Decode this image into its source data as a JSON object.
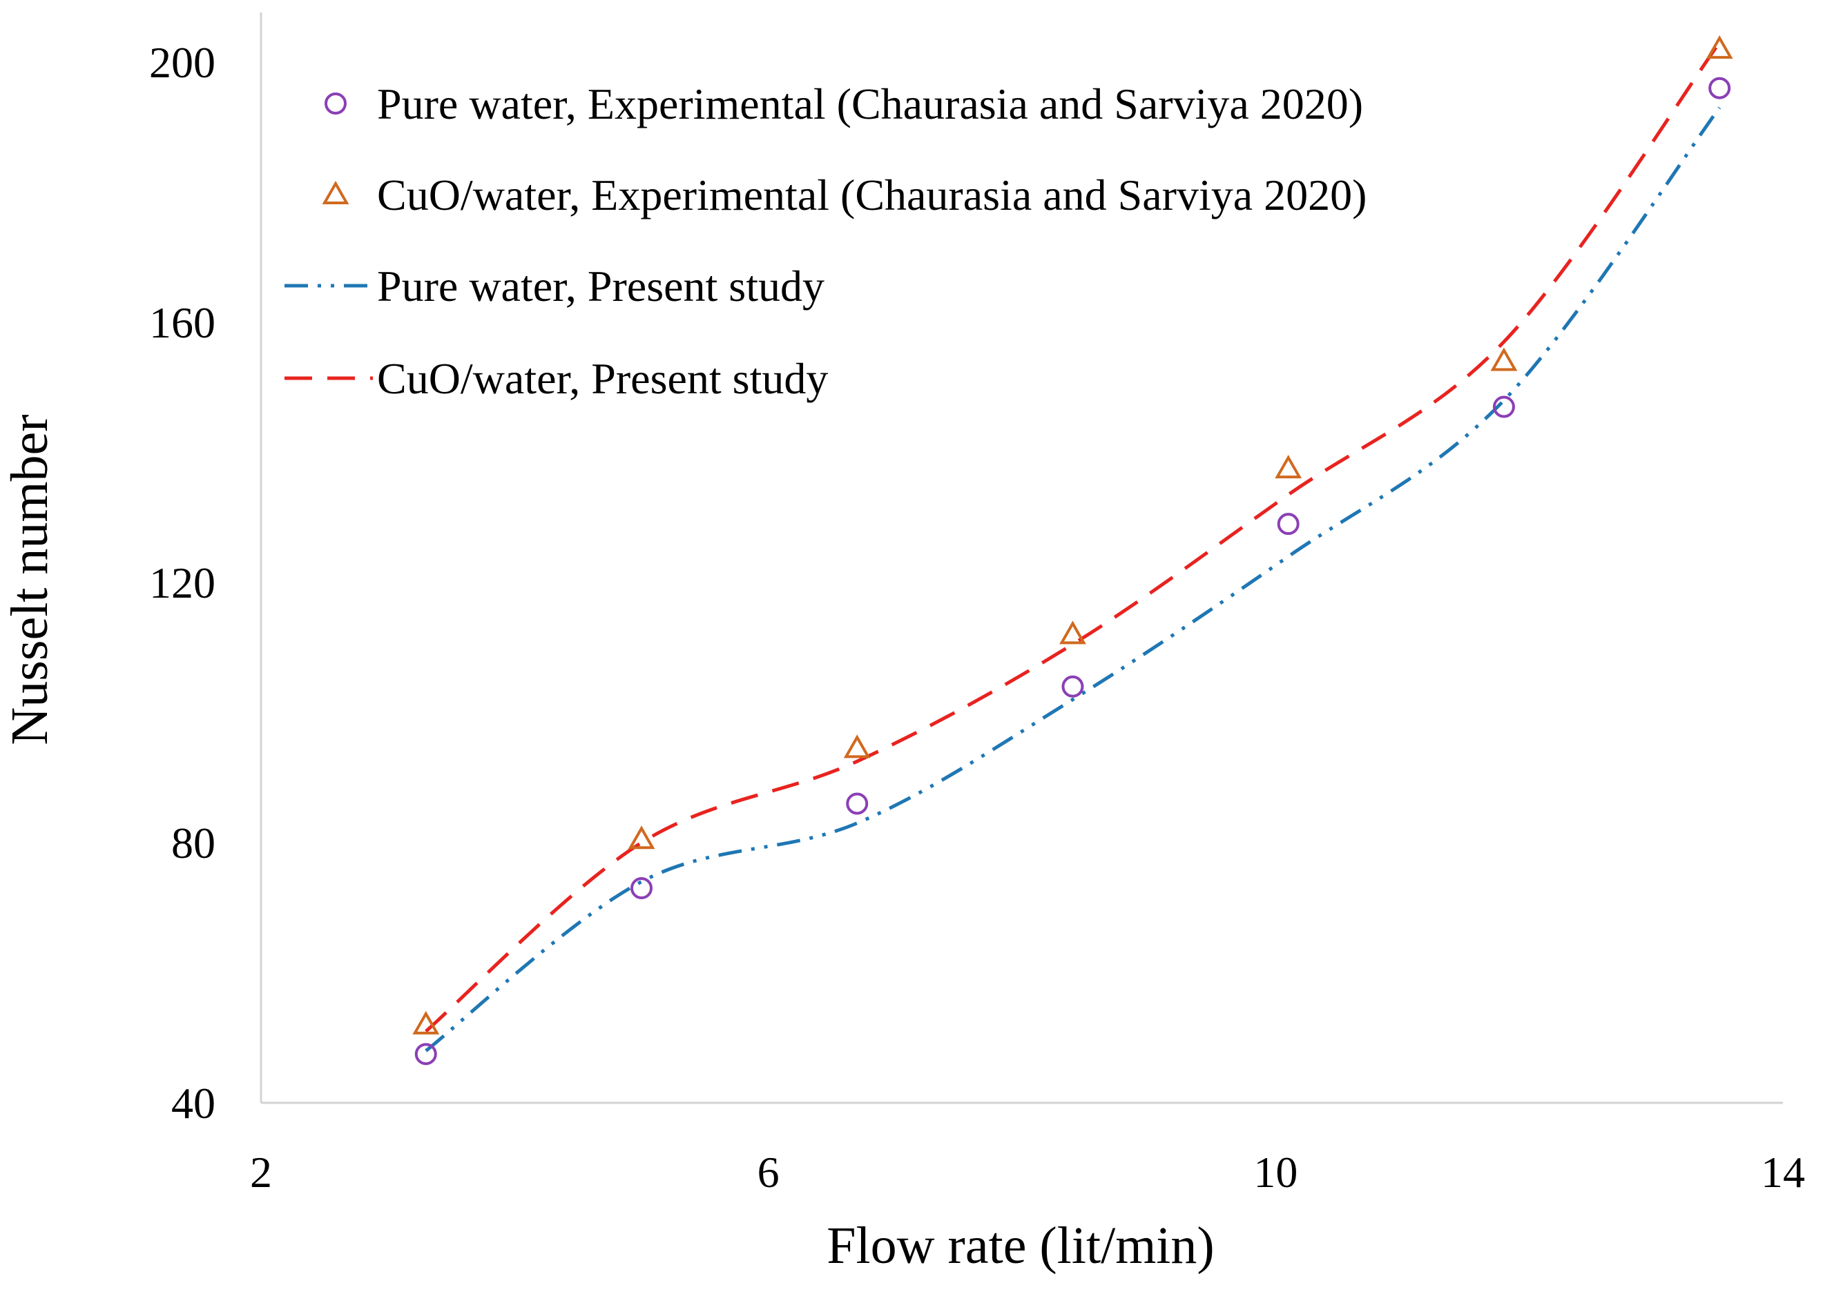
{
  "chart_data": {
    "type": "line",
    "title": "",
    "xlabel": "Flow rate (lit/min)",
    "ylabel": "Nusselt number",
    "xlim": [
      2,
      14
    ],
    "ylim": [
      40,
      200
    ],
    "xticks": [
      2,
      6,
      10,
      14
    ],
    "yticks": [
      40,
      80,
      120,
      160,
      200
    ],
    "grid": false,
    "legend_position": "top-left",
    "series": [
      {
        "name": "Pure water, Experimental (Chaurasia and Sarviya 2020)",
        "kind": "scatter",
        "marker": "circle",
        "color": "#8b3fb5",
        "x": [
          3.3,
          5.0,
          6.7,
          8.4,
          10.1,
          11.8,
          13.5
        ],
        "y": [
          47.5,
          73,
          86,
          104,
          129,
          147,
          196
        ]
      },
      {
        "name": "CuO/water, Experimental (Chaurasia and Sarviya 2020)",
        "kind": "scatter",
        "marker": "triangle",
        "color": "#d0691f",
        "x": [
          3.3,
          5.0,
          6.7,
          8.4,
          10.1,
          11.8,
          13.5
        ],
        "y": [
          52,
          80.5,
          94.5,
          112,
          137.5,
          154,
          202
        ]
      },
      {
        "name": "Pure water, Present study",
        "kind": "line",
        "dash": "dash-dot-dot",
        "color": "#1f77b4",
        "x": [
          3.3,
          5.0,
          6.7,
          8.4,
          10.1,
          11.8,
          13.5
        ],
        "y": [
          48,
          74,
          83,
          102,
          124,
          148,
          193
        ]
      },
      {
        "name": "CuO/water, Present study",
        "kind": "line",
        "dash": "dashed",
        "color": "#e8231f",
        "x": [
          3.3,
          5.0,
          6.7,
          8.4,
          10.1,
          11.8,
          13.5
        ],
        "y": [
          51,
          80,
          92.5,
          110.5,
          133.5,
          157,
          203
        ]
      }
    ]
  }
}
